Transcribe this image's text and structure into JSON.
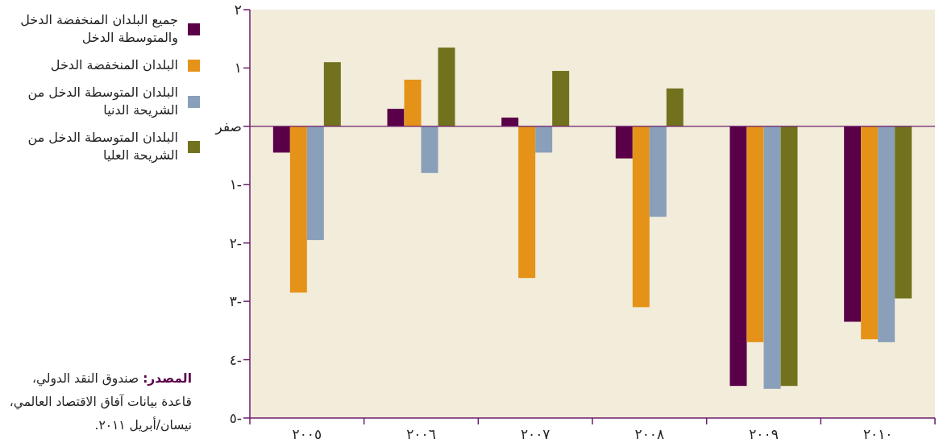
{
  "chart_data": {
    "type": "bar",
    "categories": [
      "٢٠٠٥",
      "٢٠٠٦",
      "٢٠٠٧",
      "٢٠٠٨",
      "٢٠٠٩",
      "٢٠١٠"
    ],
    "series": [
      {
        "name": "جميع البلدان المنخفضة الدخل والمتوسطة الدخل",
        "color": "#5a0048",
        "values": [
          -0.45,
          0.3,
          0.15,
          -0.55,
          -4.45,
          -3.35
        ]
      },
      {
        "name": "البلدان المنخفضة الدخل",
        "color": "#e59219",
        "values": [
          -2.85,
          0.8,
          -2.6,
          -3.1,
          -3.7,
          -3.65
        ]
      },
      {
        "name": "البلدان المتوسطة الدخل من الشريحة الدنيا",
        "color": "#8a9fba",
        "values": [
          -1.95,
          -0.8,
          -0.45,
          -1.55,
          -4.5,
          -3.7
        ]
      },
      {
        "name": "البلدان المتوسطة الدخل من الشريحة العليا",
        "color": "#72721e",
        "values": [
          1.1,
          1.35,
          0.95,
          0.65,
          -4.45,
          -2.95
        ]
      }
    ],
    "ylim": [
      -5,
      2
    ],
    "yticks": [
      {
        "value": 2,
        "label": "٢"
      },
      {
        "value": 1,
        "label": "١"
      },
      {
        "value": 0,
        "label": "صفر"
      },
      {
        "value": -1,
        "label": "١-"
      },
      {
        "value": -2,
        "label": "٢-"
      },
      {
        "value": -3,
        "label": "٣-"
      },
      {
        "value": -4,
        "label": "٤-"
      },
      {
        "value": -5,
        "label": "٥-"
      }
    ],
    "grid": false,
    "ref_lines": [
      {
        "axis": "y",
        "value": 0,
        "color": "#6b1d6b"
      }
    ],
    "legend": "left",
    "annotations": [
      "المصدر: صندوق النقد الدولي، قاعدة بيانات آفاق الاقتصاد العالمي، نيسان/أبريل ٢٠١١."
    ]
  }
}
